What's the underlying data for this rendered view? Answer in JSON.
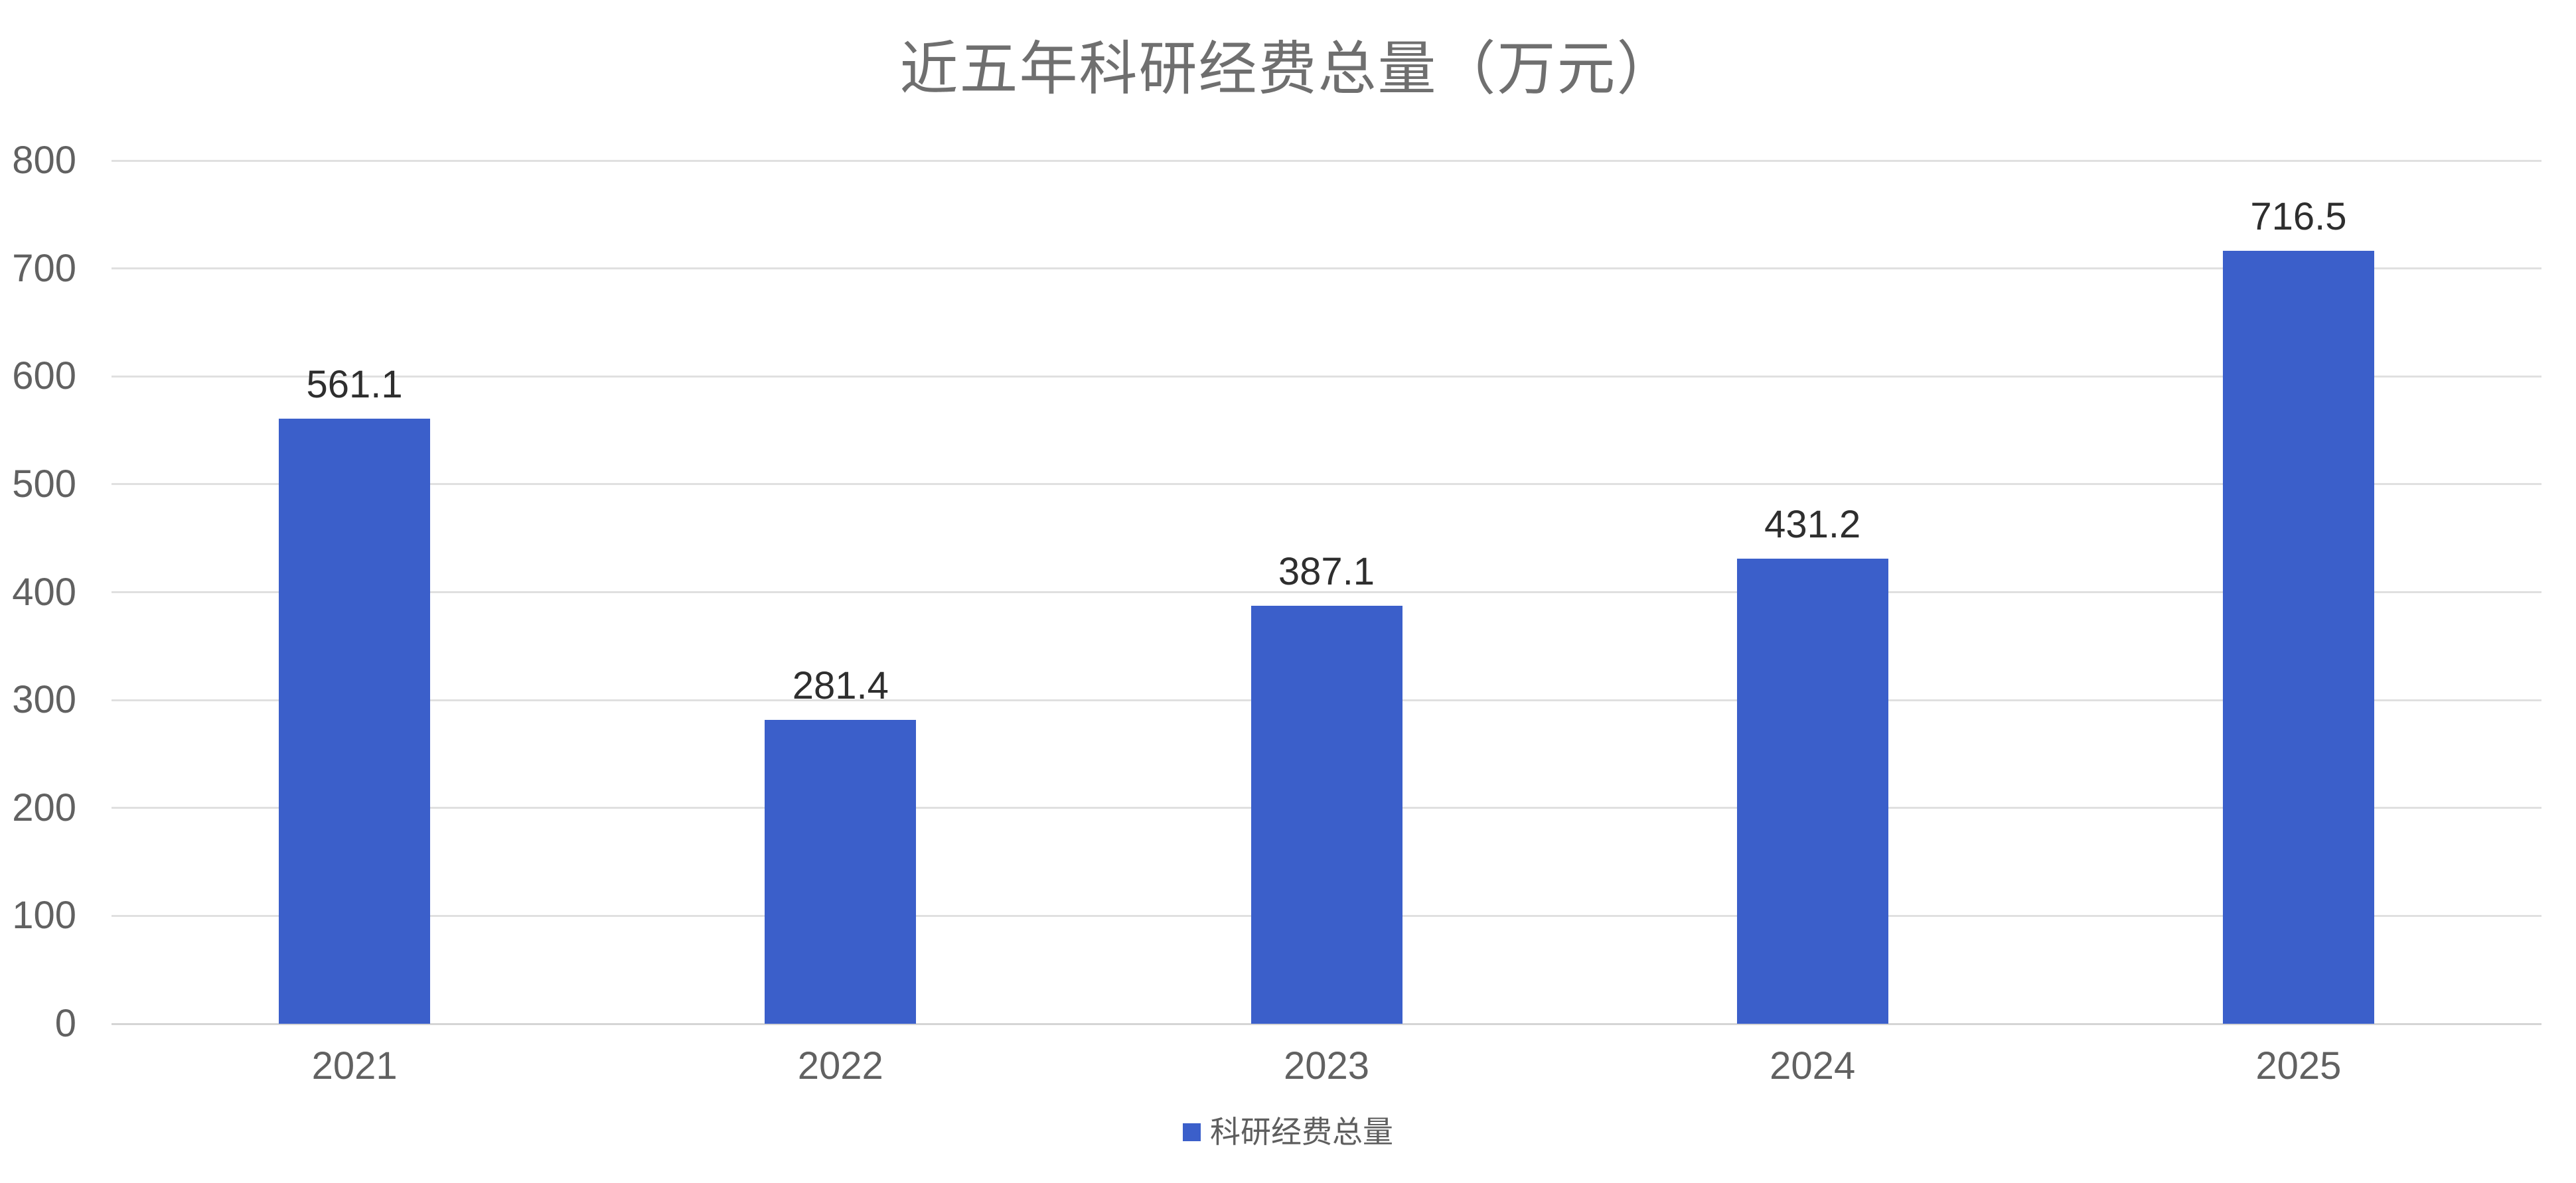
{
  "chart_data": {
    "type": "bar",
    "title": "近五年科研经费总量（万元）",
    "categories": [
      "2021",
      "2022",
      "2023",
      "2024",
      "2025"
    ],
    "series": [
      {
        "name": "科研经费总量",
        "values": [
          561.1,
          281.4,
          387.1,
          431.2,
          716.5
        ]
      }
    ],
    "value_labels": [
      "561.1",
      "281.4",
      "387.1",
      "431.2",
      "716.5"
    ],
    "xlabel": "",
    "ylabel": "",
    "ylim": [
      0,
      800
    ],
    "ytick_step": 100,
    "ytick_labels": [
      "0",
      "100",
      "200",
      "300",
      "400",
      "500",
      "600",
      "700",
      "800"
    ],
    "grid": true,
    "legend_position": "bottom",
    "colors": {
      "bar": "#3B5FCA",
      "title": "#6F6F6F",
      "axis_label": "#616161",
      "value_label": "#2E2E2E",
      "legend_label": "#5E5E5E",
      "gridline": "#E0E0E0",
      "zero_line": "#D5D5D5",
      "background": "#FFFFFF"
    }
  }
}
